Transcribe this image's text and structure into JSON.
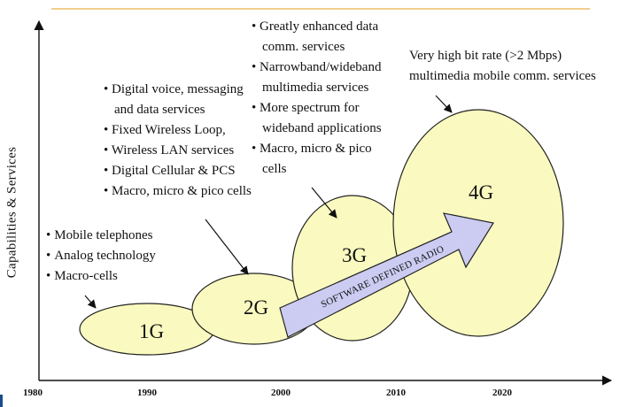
{
  "axis": {
    "y_label": "Capabilities & Services",
    "years": [
      "1980",
      "1990",
      "2000",
      "2010",
      "2020"
    ]
  },
  "generations": [
    {
      "label": "1G"
    },
    {
      "label": "2G"
    },
    {
      "label": "3G"
    },
    {
      "label": "4G"
    }
  ],
  "arrow_label": "SOFTWARE DEFINED RADIO",
  "notes": {
    "g1": [
      "Mobile telephones",
      "Analog technology",
      "Macro-cells"
    ],
    "g2": [
      "Digital voice, messaging",
      "and data services",
      "Fixed Wireless Loop,",
      "Wireless LAN services",
      "Digital Cellular & PCS",
      "Macro, micro & pico cells"
    ],
    "g3": [
      "Greatly enhanced data",
      "comm. services",
      "Narrowband/wideband",
      "multimedia services",
      "More spectrum for",
      "wideband  applications",
      "Macro, micro & pico",
      "cells"
    ],
    "g4": [
      "Very high bit rate (>2 Mbps)",
      "multimedia mobile comm. services"
    ]
  },
  "colors": {
    "ellipse_fill": "#fafac0",
    "ellipse_stroke": "#222222",
    "arrow_fill": "#ccccf2",
    "top_rule": "#e8b04a",
    "corner_accent": "#1a4b8c"
  }
}
